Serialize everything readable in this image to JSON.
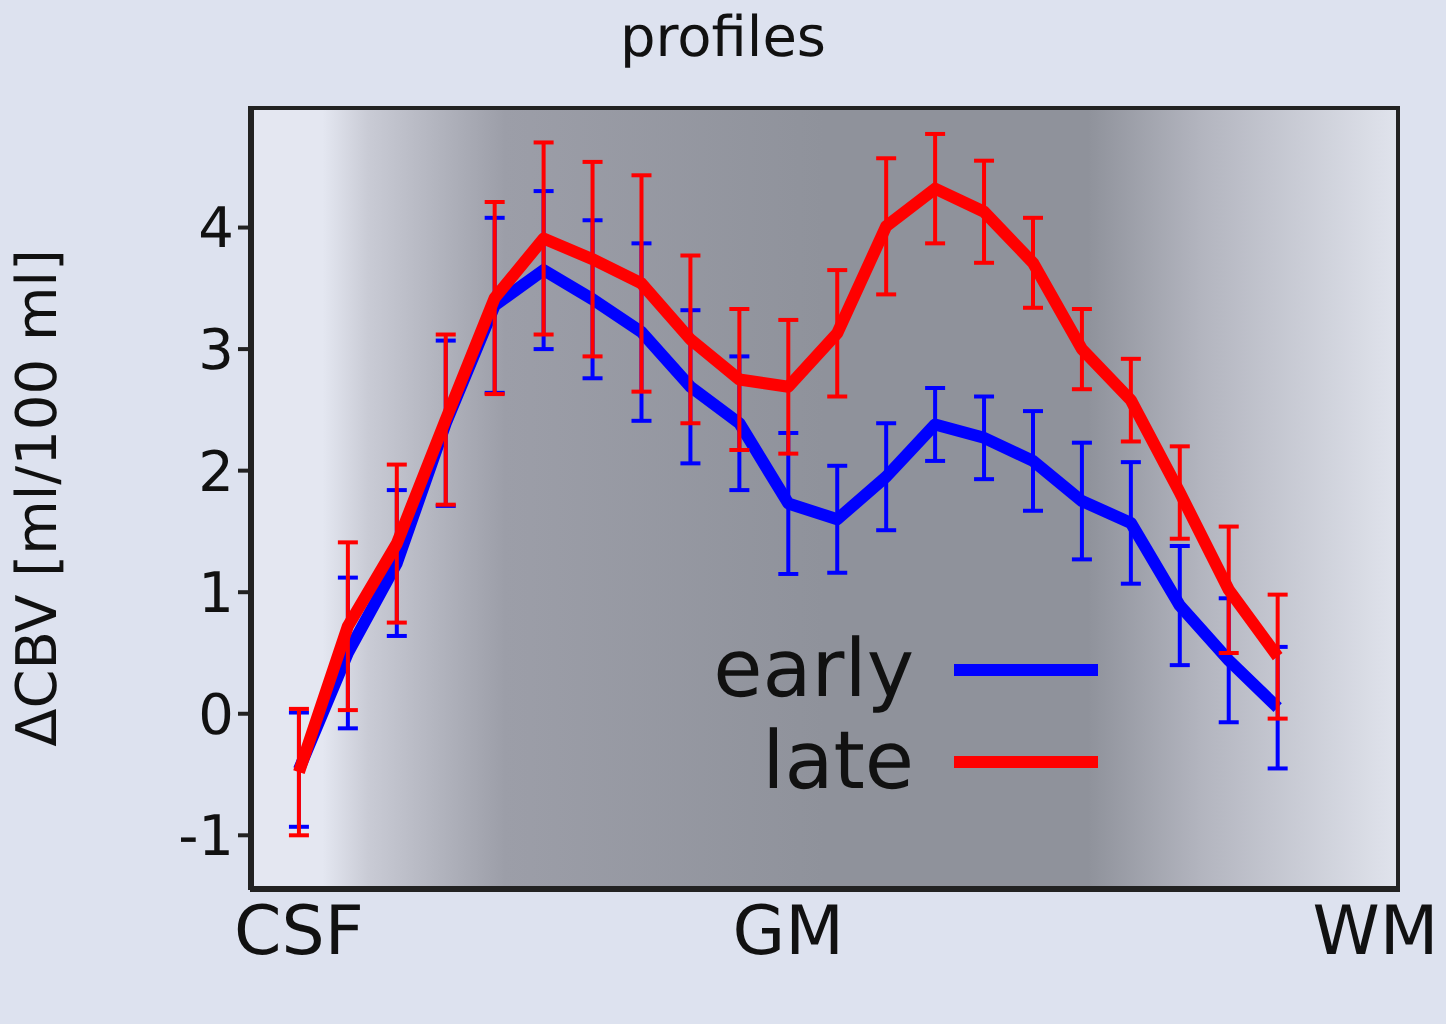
{
  "chart_data": {
    "type": "line",
    "title": "profiles",
    "ylabel": "ΔCBV [ml/100 ml]",
    "categories": [
      "CSF",
      null,
      null,
      null,
      null,
      null,
      null,
      null,
      null,
      null,
      "GM",
      null,
      null,
      null,
      null,
      null,
      null,
      null,
      null,
      null,
      null,
      null,
      "WM"
    ],
    "ylim": [
      -1.45,
      5
    ],
    "yticks": [
      -1,
      0,
      1,
      2,
      3,
      4
    ],
    "series": [
      {
        "name": "early",
        "color": "#0000ff",
        "values": [
          -0.46,
          0.5,
          1.24,
          2.39,
          3.36,
          3.65,
          3.41,
          3.14,
          2.69,
          2.39,
          1.73,
          1.6,
          1.95,
          2.38,
          2.27,
          2.08,
          1.75,
          1.57,
          0.89,
          0.44,
          0.05,
          null,
          null
        ],
        "errors": [
          0.47,
          0.62,
          0.6,
          0.68,
          0.72,
          0.65,
          0.65,
          0.73,
          0.63,
          0.55,
          0.58,
          0.44,
          0.44,
          0.3,
          0.34,
          0.41,
          0.48,
          0.5,
          0.49,
          0.51,
          0.5,
          null,
          null
        ]
      },
      {
        "name": "late",
        "color": "#ff0000",
        "values": [
          -0.48,
          0.72,
          1.4,
          2.42,
          3.42,
          3.91,
          3.74,
          3.54,
          3.08,
          2.75,
          2.69,
          3.13,
          4.01,
          4.32,
          4.13,
          3.71,
          3.0,
          2.58,
          1.82,
          1.02,
          0.47,
          null,
          null
        ],
        "errors": [
          0.52,
          0.69,
          0.65,
          0.7,
          0.79,
          0.79,
          0.8,
          0.89,
          0.69,
          0.58,
          0.55,
          0.52,
          0.56,
          0.45,
          0.42,
          0.37,
          0.33,
          0.34,
          0.38,
          0.52,
          0.51,
          null,
          null
        ]
      }
    ],
    "legend": "bottom right",
    "grid": false,
    "marker": "none",
    "line_style": "solid"
  }
}
